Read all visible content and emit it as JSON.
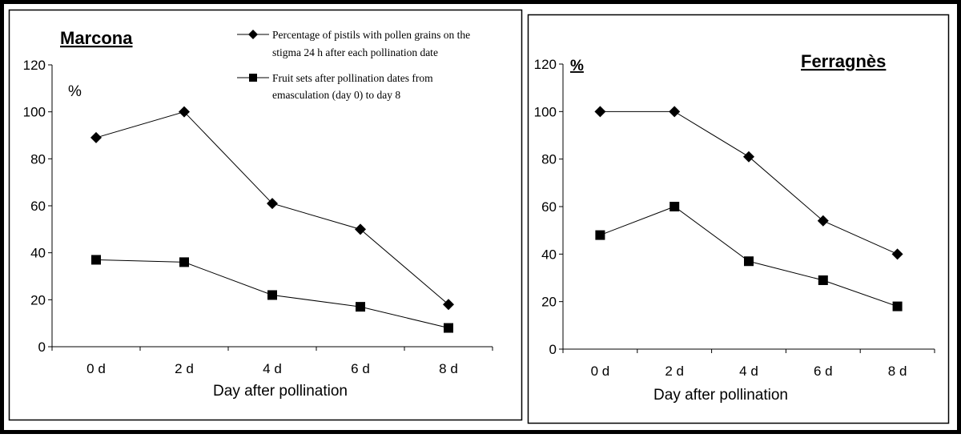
{
  "chart_data": [
    {
      "type": "line",
      "title": "Marcona",
      "ylabel": "%",
      "xlabel": "Day after pollination",
      "categories": [
        "0 d",
        "2 d",
        "4 d",
        "6 d",
        "8 d"
      ],
      "ylim": [
        0,
        120
      ],
      "yticks": [
        "0",
        "20",
        "40",
        "60",
        "80",
        "100",
        "120"
      ],
      "grid": false,
      "legend_position": "top",
      "series": [
        {
          "name": "Percentage of pistils with pollen grains on the stigma 24 h after each pollination date",
          "marker": "diamond",
          "values": [
            89,
            100,
            61,
            50,
            18
          ]
        },
        {
          "name": "Fruit sets after pollination dates from emasculation (day 0) to day 8",
          "marker": "square",
          "values": [
            37,
            36,
            22,
            17,
            8
          ]
        }
      ]
    },
    {
      "type": "line",
      "title": "Ferragnès",
      "ylabel": "%",
      "xlabel": "Day after pollination",
      "categories": [
        "0 d",
        "2 d",
        "4 d",
        "6 d",
        "8 d"
      ],
      "ylim": [
        0,
        120
      ],
      "yticks": [
        "0",
        "20",
        "40",
        "60",
        "80",
        "100",
        "120"
      ],
      "grid": false,
      "series": [
        {
          "marker": "diamond",
          "values": [
            100,
            100,
            81,
            54,
            40
          ]
        },
        {
          "marker": "square",
          "values": [
            48,
            60,
            37,
            29,
            18
          ]
        }
      ]
    }
  ],
  "legend_lines": [
    [
      "Percentage of pistils with pollen grains on the",
      "stigma 24 h after each pollination date"
    ],
    [
      "Fruit sets after pollination dates from",
      "emasculation (day 0) to day 8"
    ]
  ]
}
